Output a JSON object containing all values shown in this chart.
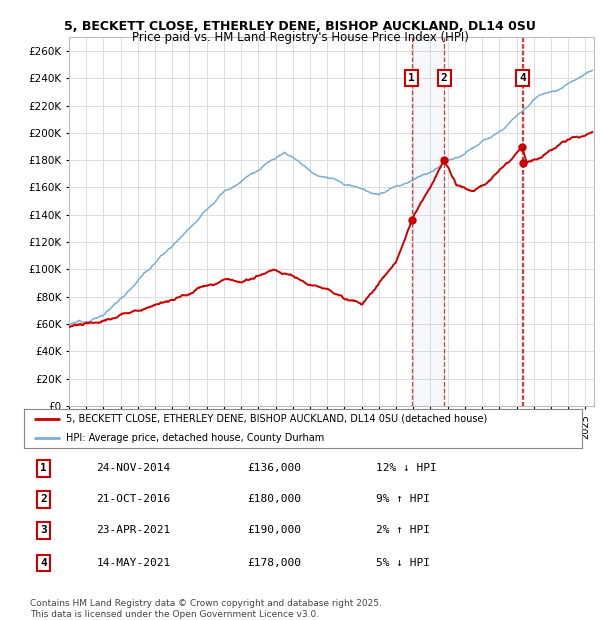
{
  "title1": "5, BECKETT CLOSE, ETHERLEY DENE, BISHOP AUCKLAND, DL14 0SU",
  "title2": "Price paid vs. HM Land Registry's House Price Index (HPI)",
  "ylim": [
    0,
    270000
  ],
  "yticks": [
    0,
    20000,
    40000,
    60000,
    80000,
    100000,
    120000,
    140000,
    160000,
    180000,
    200000,
    220000,
    240000,
    260000
  ],
  "xlim_start": 1995.0,
  "xlim_end": 2025.5,
  "background_color": "#ffffff",
  "plot_bg_color": "#ffffff",
  "grid_color": "#dddddd",
  "red_line_color": "#cc0000",
  "blue_line_color": "#7aafd4",
  "sale_dates": [
    2014.9,
    2016.8,
    2021.31,
    2021.37
  ],
  "sale_prices": [
    136000,
    180000,
    190000,
    178000
  ],
  "sale_labels": [
    "1",
    "2",
    "3",
    "4"
  ],
  "show_box_at_top": [
    true,
    true,
    false,
    true
  ],
  "legend_line1": "5, BECKETT CLOSE, ETHERLEY DENE, BISHOP AUCKLAND, DL14 0SU (detached house)",
  "legend_line2": "HPI: Average price, detached house, County Durham",
  "table_data": [
    [
      "1",
      "24-NOV-2014",
      "£136,000",
      "12% ↓ HPI"
    ],
    [
      "2",
      "21-OCT-2016",
      "£180,000",
      "9% ↑ HPI"
    ],
    [
      "3",
      "23-APR-2021",
      "£190,000",
      "2% ↑ HPI"
    ],
    [
      "4",
      "14-MAY-2021",
      "£178,000",
      "5% ↓ HPI"
    ]
  ],
  "footer": "Contains HM Land Registry data © Crown copyright and database right 2025.\nThis data is licensed under the Open Government Licence v3.0.",
  "shaded_region": [
    2014.9,
    2016.8
  ],
  "vline_dates": [
    2014.9,
    2016.8,
    2021.31,
    2021.37
  ]
}
